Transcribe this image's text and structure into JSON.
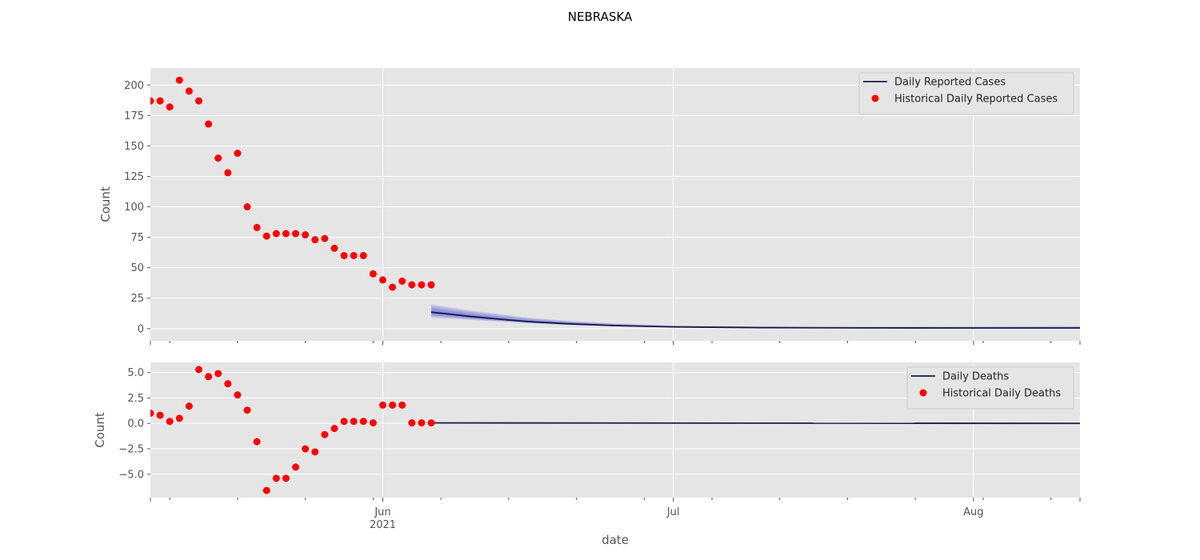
{
  "chart_data": {
    "title": "NEBRASKA",
    "xlabel": "date",
    "x_ticks": [
      {
        "date": "2021-06-01",
        "label": "Jun",
        "sublabel": "2021"
      },
      {
        "date": "2021-07-01",
        "label": "Jul",
        "sublabel": ""
      },
      {
        "date": "2021-08-01",
        "label": "Aug",
        "sublabel": ""
      }
    ],
    "xlim": [
      "2021-05-08",
      "2021-08-12"
    ],
    "panels": [
      {
        "type": "line+scatter",
        "ylabel": "Count",
        "ylim": [
          -10,
          214
        ],
        "y_ticks": [
          0,
          25,
          50,
          75,
          100,
          125,
          150,
          175,
          200
        ],
        "grid": true,
        "legend_position": "top-right",
        "series": [
          {
            "name": "Daily Reported Cases",
            "kind": "line",
            "color": "#1a1a4a",
            "band_color": "#4b4bd6",
            "x": [
              "2021-06-06",
              "2021-06-08",
              "2021-06-10",
              "2021-06-13",
              "2021-06-16",
              "2021-06-20",
              "2021-06-25",
              "2021-07-01",
              "2021-07-10",
              "2021-07-20",
              "2021-08-01",
              "2021-08-12"
            ],
            "y": [
              13.5,
              11.8,
              10.0,
              7.8,
              5.8,
              4.0,
              2.5,
              1.4,
              0.8,
              0.6,
              0.5,
              0.5
            ],
            "band_low": [
              9,
              8.2,
              7.2,
              5.8,
              4.4,
              3.0,
              1.8,
              1.0,
              0.5,
              0.3,
              0.2,
              0.2
            ],
            "band_high": [
              20,
              17.5,
              15.0,
              12.0,
              9.0,
              6.5,
              4.2,
              2.5,
              1.8,
              1.6,
              1.7,
              2.0
            ]
          },
          {
            "name": "Historical Daily Reported Cases",
            "kind": "scatter",
            "color": "#ff0000",
            "x": [
              "2021-05-08",
              "2021-05-09",
              "2021-05-10",
              "2021-05-11",
              "2021-05-12",
              "2021-05-13",
              "2021-05-14",
              "2021-05-15",
              "2021-05-16",
              "2021-05-17",
              "2021-05-18",
              "2021-05-19",
              "2021-05-20",
              "2021-05-21",
              "2021-05-22",
              "2021-05-23",
              "2021-05-24",
              "2021-05-25",
              "2021-05-26",
              "2021-05-27",
              "2021-05-28",
              "2021-05-29",
              "2021-05-30",
              "2021-05-31",
              "2021-06-01",
              "2021-06-02",
              "2021-06-03",
              "2021-06-04",
              "2021-06-05",
              "2021-06-06"
            ],
            "y": [
              187,
              187,
              182,
              204,
              195,
              187,
              168,
              140,
              128,
              144,
              100,
              83,
              76,
              78,
              78,
              78,
              77,
              73,
              74,
              66,
              60,
              60,
              60,
              45,
              40,
              34,
              39,
              36,
              36,
              36
            ]
          }
        ]
      },
      {
        "type": "line+scatter",
        "ylabel": "Count",
        "ylim": [
          -7.3,
          6.0
        ],
        "y_ticks": [
          -5.0,
          -2.5,
          0.0,
          2.5,
          5.0
        ],
        "y_tick_labels": [
          "−5.0",
          "−2.5",
          "0.0",
          "2.5",
          "5.0"
        ],
        "grid": true,
        "legend_position": "top-right",
        "series": [
          {
            "name": "Daily Deaths",
            "kind": "line",
            "color": "#1a1a4a",
            "x": [
              "2021-06-06",
              "2021-08-12"
            ],
            "y": [
              0.05,
              0.0
            ]
          },
          {
            "name": "Historical Daily Deaths",
            "kind": "scatter",
            "color": "#ff0000",
            "x": [
              "2021-05-08",
              "2021-05-09",
              "2021-05-10",
              "2021-05-11",
              "2021-05-12",
              "2021-05-13",
              "2021-05-14",
              "2021-05-15",
              "2021-05-16",
              "2021-05-17",
              "2021-05-18",
              "2021-05-19",
              "2021-05-20",
              "2021-05-21",
              "2021-05-22",
              "2021-05-23",
              "2021-05-24",
              "2021-05-25",
              "2021-05-26",
              "2021-05-27",
              "2021-05-28",
              "2021-05-29",
              "2021-05-30",
              "2021-05-31",
              "2021-06-01",
              "2021-06-02",
              "2021-06-03",
              "2021-06-04",
              "2021-06-05",
              "2021-06-06"
            ],
            "y": [
              1.0,
              0.8,
              0.2,
              0.5,
              1.7,
              5.3,
              4.6,
              4.9,
              3.9,
              2.8,
              1.3,
              -1.8,
              -6.6,
              -5.4,
              -5.4,
              -4.3,
              -2.5,
              -2.8,
              -1.1,
              -0.5,
              0.2,
              0.2,
              0.2,
              0.05,
              1.8,
              1.8,
              1.8,
              0.05,
              0.05,
              0.05
            ]
          }
        ]
      }
    ]
  }
}
